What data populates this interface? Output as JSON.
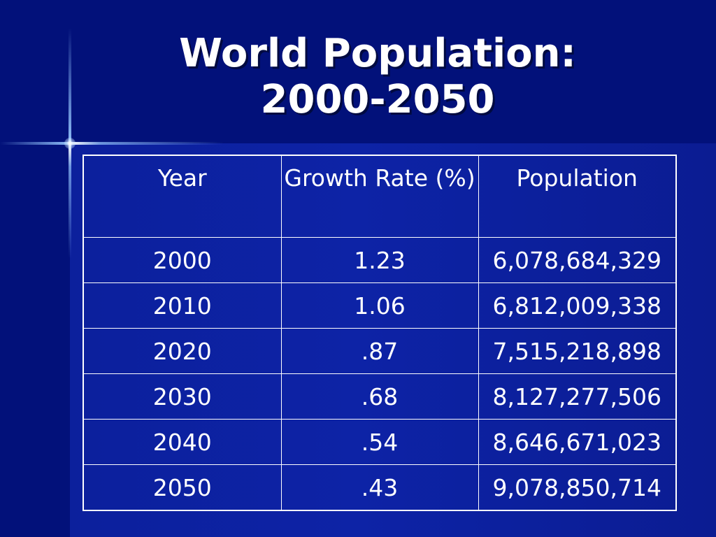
{
  "slide": {
    "title_line1": "World Population:",
    "title_line2": "2000-2050"
  },
  "table": {
    "headers": [
      "Year",
      "Growth Rate (%)",
      "Population"
    ],
    "rows": [
      [
        "2000",
        "1.23",
        "6,078,684,329"
      ],
      [
        "2010",
        "1.06",
        "6,812,009,338"
      ],
      [
        "2020",
        ".87",
        "7,515,218,898"
      ],
      [
        "2030",
        ".68",
        "8,127,277,506"
      ],
      [
        "2040",
        ".54",
        "8,646,671,023"
      ],
      [
        "2050",
        ".43",
        "9,078,850,714"
      ]
    ]
  },
  "colors": {
    "background": "#0d23a6",
    "band": "#02117a",
    "text": "#ffffff"
  }
}
